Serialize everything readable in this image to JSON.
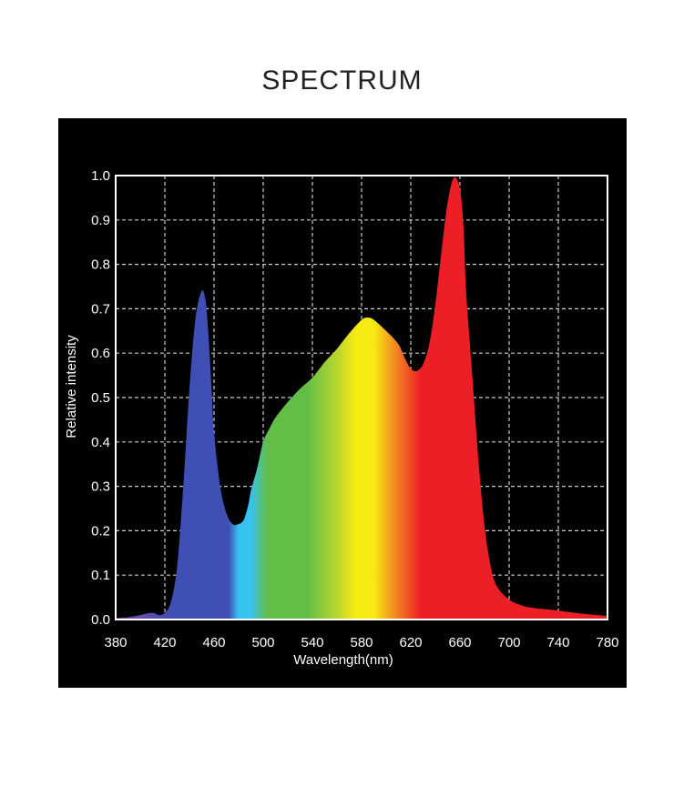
{
  "title": "SPECTRUM",
  "chart_data": {
    "type": "area",
    "xlabel": "Wavelength(nm)",
    "ylabel": "Relative intensity",
    "xlim": [
      380,
      780
    ],
    "ylim": [
      0,
      1.0
    ],
    "grid": true,
    "x_ticks": [
      "380",
      "420",
      "460",
      "500",
      "540",
      "580",
      "620",
      "660",
      "700",
      "740",
      "780"
    ],
    "y_ticks": [
      "0.0",
      "0.1",
      "0.2",
      "0.3",
      "0.4",
      "0.5",
      "0.6",
      "0.7",
      "0.8",
      "0.9",
      "1.0"
    ],
    "series": [
      {
        "x": [
          380,
          390,
          400,
          410,
          415,
          420,
          425,
          430,
          435,
          440,
          445,
          450,
          453,
          455,
          458,
          460,
          465,
          470,
          475,
          480,
          483,
          485,
          488,
          490,
          495,
          500,
          505,
          510,
          520,
          530,
          540,
          550,
          560,
          570,
          580,
          585,
          590,
          600,
          610,
          615,
          620,
          625,
          630,
          635,
          640,
          645,
          650,
          655,
          660,
          663,
          665,
          670,
          675,
          680,
          685,
          690,
          700,
          710,
          720,
          740,
          760,
          780
        ],
        "y": [
          0.003,
          0.005,
          0.01,
          0.015,
          0.01,
          0.015,
          0.04,
          0.12,
          0.3,
          0.52,
          0.68,
          0.74,
          0.72,
          0.66,
          0.52,
          0.42,
          0.3,
          0.24,
          0.215,
          0.215,
          0.22,
          0.23,
          0.26,
          0.29,
          0.34,
          0.4,
          0.43,
          0.455,
          0.49,
          0.52,
          0.545,
          0.58,
          0.61,
          0.645,
          0.675,
          0.68,
          0.675,
          0.65,
          0.62,
          0.59,
          0.565,
          0.56,
          0.575,
          0.62,
          0.71,
          0.83,
          0.94,
          0.995,
          0.97,
          0.88,
          0.74,
          0.55,
          0.36,
          0.21,
          0.12,
          0.075,
          0.045,
          0.032,
          0.026,
          0.02,
          0.013,
          0.008
        ]
      }
    ],
    "colors": {
      "violet": "#8a46a8",
      "blue": "#3f4fb5",
      "cyan": "#35c3f0",
      "green": "#62be46",
      "yellow": "#f7ea12",
      "orange": "#f28a22",
      "red": "#ec1f26",
      "background": "#000000",
      "grid": "#cccccc",
      "frame": "#ffffff"
    }
  }
}
